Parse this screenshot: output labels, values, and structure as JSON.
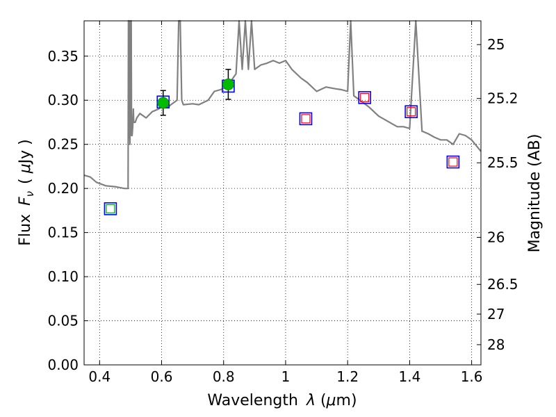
{
  "chart_data": {
    "type": "scatter",
    "xlabel": "Wavelength",
    "xlabel_symbol": "λ",
    "xlabel_unit_open": " (",
    "xlabel_unit_mu": "μ",
    "xlabel_unit_rest": "m)",
    "ylabel": "Flux",
    "ylabel_symbol": "F",
    "ylabel_symbol_sub": "ν",
    "ylabel_unit_open": "( ",
    "ylabel_unit_mu": "μ",
    "ylabel_unit_rest": "Jy )",
    "y2label": "Magnitude (AB)",
    "xlim": [
      0.35,
      1.63
    ],
    "ylim": [
      0.0,
      0.39
    ],
    "grid": true,
    "x_ticks": [
      {
        "value": 0.4,
        "label": "0.4"
      },
      {
        "value": 0.6,
        "label": "0.6"
      },
      {
        "value": 0.8,
        "label": "0.8"
      },
      {
        "value": 1.0,
        "label": "1"
      },
      {
        "value": 1.2,
        "label": "1.2"
      },
      {
        "value": 1.4,
        "label": "1.4"
      },
      {
        "value": 1.6,
        "label": "1.6"
      }
    ],
    "y_ticks": [
      {
        "value": 0.0,
        "label": "0.00"
      },
      {
        "value": 0.05,
        "label": "0.05"
      },
      {
        "value": 0.1,
        "label": "0.10"
      },
      {
        "value": 0.15,
        "label": "0.15"
      },
      {
        "value": 0.2,
        "label": "0.20"
      },
      {
        "value": 0.25,
        "label": "0.25"
      },
      {
        "value": 0.3,
        "label": "0.30"
      },
      {
        "value": 0.35,
        "label": "0.35"
      }
    ],
    "y2_ticks": [
      {
        "mag": 25,
        "label": "25"
      },
      {
        "mag": 25.2,
        "label": "25.2"
      },
      {
        "mag": 25.5,
        "label": "25.5"
      },
      {
        "mag": 26,
        "label": "26"
      },
      {
        "mag": 26.5,
        "label": "26.5"
      },
      {
        "mag": 27,
        "label": "27"
      },
      {
        "mag": 28,
        "label": "28"
      }
    ],
    "series": [
      {
        "kind": "line",
        "color": "#808080",
        "x": [
          0.35,
          0.37,
          0.39,
          0.42,
          0.45,
          0.48,
          0.492,
          0.493,
          0.495,
          0.496,
          0.498,
          0.5,
          0.502,
          0.503,
          0.505,
          0.507,
          0.509,
          0.51,
          0.515,
          0.52,
          0.53,
          0.55,
          0.57,
          0.59,
          0.6,
          0.62,
          0.63,
          0.65,
          0.655,
          0.66,
          0.665,
          0.67,
          0.7,
          0.72,
          0.75,
          0.77,
          0.79,
          0.81,
          0.82,
          0.84,
          0.85,
          0.86,
          0.87,
          0.88,
          0.89,
          0.9,
          0.92,
          0.94,
          0.96,
          0.98,
          1.0,
          1.02,
          1.05,
          1.07,
          1.1,
          1.13,
          1.16,
          1.18,
          1.2,
          1.21,
          1.22,
          1.24,
          1.27,
          1.3,
          1.33,
          1.36,
          1.38,
          1.4,
          1.42,
          1.44,
          1.46,
          1.48,
          1.5,
          1.52,
          1.54,
          1.56,
          1.58,
          1.6,
          1.63
        ],
        "y": [
          0.215,
          0.213,
          0.207,
          0.203,
          0.202,
          0.2,
          0.2,
          0.39,
          0.39,
          0.27,
          0.25,
          0.39,
          0.39,
          0.26,
          0.26,
          0.27,
          0.29,
          0.275,
          0.275,
          0.28,
          0.285,
          0.28,
          0.287,
          0.29,
          0.293,
          0.292,
          0.295,
          0.3,
          0.39,
          0.39,
          0.3,
          0.295,
          0.296,
          0.295,
          0.3,
          0.31,
          0.312,
          0.315,
          0.32,
          0.33,
          0.39,
          0.335,
          0.39,
          0.335,
          0.39,
          0.335,
          0.34,
          0.342,
          0.345,
          0.342,
          0.345,
          0.335,
          0.325,
          0.32,
          0.31,
          0.315,
          0.313,
          0.312,
          0.31,
          0.39,
          0.305,
          0.3,
          0.292,
          0.282,
          0.276,
          0.27,
          0.27,
          0.268,
          0.39,
          0.265,
          0.262,
          0.258,
          0.255,
          0.255,
          0.25,
          0.262,
          0.26,
          0.255,
          0.242
        ]
      },
      {
        "kind": "model_blue_squares",
        "color": "#0000ff",
        "x": [
          0.435,
          0.605,
          0.815,
          1.065,
          1.255,
          1.405,
          1.54
        ],
        "y": [
          0.177,
          0.298,
          0.316,
          0.279,
          0.303,
          0.287,
          0.23
        ]
      },
      {
        "kind": "model_red_squares",
        "color": "#ff0000",
        "x": [
          1.065,
          1.255,
          1.405,
          1.54
        ],
        "y": [
          0.279,
          0.303,
          0.287,
          0.23
        ]
      },
      {
        "kind": "model_green_square",
        "color": "#00aa00",
        "x": [
          0.435
        ],
        "y": [
          0.177
        ]
      },
      {
        "kind": "observed_points",
        "color": "#00bb00",
        "x": [
          0.605,
          0.815
        ],
        "y": [
          0.297,
          0.318
        ],
        "err": [
          0.014,
          0.017
        ]
      }
    ]
  }
}
